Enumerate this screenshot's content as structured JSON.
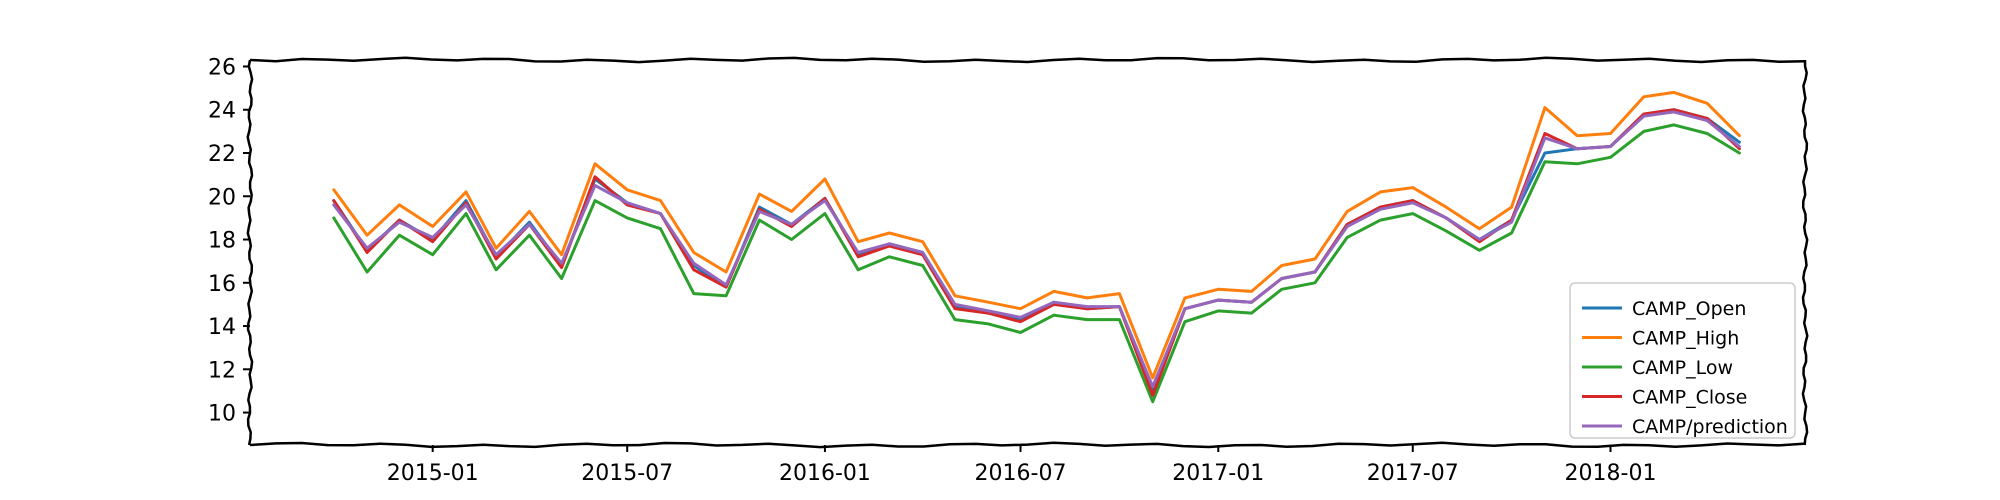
{
  "chart_data": {
    "type": "line",
    "title": "",
    "xlabel": "",
    "ylabel": "",
    "x_tick_labels": [
      "2015-01",
      "2015-07",
      "2016-01",
      "2016-07",
      "2017-01",
      "2017-07",
      "2018-01"
    ],
    "y_ticks": [
      10,
      12,
      14,
      16,
      18,
      20,
      22,
      24,
      26
    ],
    "ylim": [
      8.5,
      26.3
    ],
    "xlim": [
      "2014-07-15",
      "2018-07-01"
    ],
    "legend_position": "lower right",
    "grid": false,
    "colors": {
      "CAMP_Open": "#1f77b4",
      "CAMP_High": "#ff7f0e",
      "CAMP_Low": "#2ca02c",
      "CAMP_Close": "#d62728",
      "CAMP/prediction": "#9467bd"
    },
    "x": [
      "2014-10-01",
      "2014-11-01",
      "2014-12-01",
      "2015-01-01",
      "2015-02-01",
      "2015-03-01",
      "2015-04-01",
      "2015-05-01",
      "2015-06-01",
      "2015-07-01",
      "2015-08-01",
      "2015-09-01",
      "2015-10-01",
      "2015-11-01",
      "2015-12-01",
      "2016-01-01",
      "2016-02-01",
      "2016-03-01",
      "2016-04-01",
      "2016-05-01",
      "2016-06-01",
      "2016-07-01",
      "2016-08-01",
      "2016-09-01",
      "2016-10-01",
      "2016-11-01",
      "2016-12-01",
      "2017-01-01",
      "2017-02-01",
      "2017-03-01",
      "2017-04-01",
      "2017-05-01",
      "2017-06-01",
      "2017-07-01",
      "2017-08-01",
      "2017-09-01",
      "2017-10-01",
      "2017-11-01",
      "2017-12-01",
      "2018-01-01",
      "2018-02-01",
      "2018-03-01",
      "2018-04-01",
      "2018-05-01"
    ],
    "series": [
      {
        "name": "CAMP_Open",
        "values": [
          19.8,
          17.5,
          18.9,
          18.0,
          19.8,
          17.2,
          18.8,
          16.8,
          20.8,
          19.7,
          19.2,
          16.8,
          15.8,
          19.5,
          18.7,
          19.9,
          17.3,
          17.8,
          17.4,
          14.9,
          14.6,
          14.3,
          15.1,
          14.8,
          14.9,
          11.0,
          14.8,
          15.2,
          15.1,
          16.2,
          16.5,
          18.7,
          19.5,
          19.8,
          19.0,
          18.0,
          18.9,
          22.0,
          22.2,
          22.3,
          23.8,
          24.0,
          23.6,
          22.5
        ]
      },
      {
        "name": "CAMP_High",
        "values": [
          20.3,
          18.2,
          19.6,
          18.6,
          20.2,
          17.6,
          19.3,
          17.3,
          21.5,
          20.3,
          19.8,
          17.4,
          16.5,
          20.1,
          19.3,
          20.8,
          17.9,
          18.3,
          17.9,
          15.4,
          15.1,
          14.8,
          15.6,
          15.3,
          15.5,
          11.6,
          15.3,
          15.7,
          15.6,
          16.8,
          17.1,
          19.3,
          20.2,
          20.4,
          19.5,
          18.5,
          19.5,
          24.1,
          22.8,
          22.9,
          24.6,
          24.8,
          24.3,
          22.8
        ]
      },
      {
        "name": "CAMP_Low",
        "values": [
          19.0,
          16.5,
          18.2,
          17.3,
          19.2,
          16.6,
          18.2,
          16.2,
          19.8,
          19.0,
          18.5,
          15.5,
          15.4,
          18.9,
          18.0,
          19.2,
          16.6,
          17.2,
          16.8,
          14.3,
          14.1,
          13.7,
          14.5,
          14.3,
          14.3,
          10.5,
          14.2,
          14.7,
          14.6,
          15.7,
          16.0,
          18.1,
          18.9,
          19.2,
          18.4,
          17.5,
          18.3,
          21.6,
          21.5,
          21.8,
          23.0,
          23.3,
          22.9,
          22.0
        ]
      },
      {
        "name": "CAMP_Close",
        "values": [
          19.8,
          17.4,
          18.9,
          17.9,
          19.7,
          17.1,
          18.7,
          16.7,
          20.9,
          19.6,
          19.2,
          16.6,
          15.8,
          19.4,
          18.6,
          19.9,
          17.2,
          17.7,
          17.3,
          14.8,
          14.6,
          14.2,
          15.0,
          14.8,
          14.9,
          10.8,
          14.8,
          15.2,
          15.1,
          16.2,
          16.5,
          18.7,
          19.5,
          19.8,
          19.0,
          17.9,
          18.9,
          22.9,
          22.2,
          22.3,
          23.8,
          24.0,
          23.6,
          22.2
        ]
      },
      {
        "name": "CAMP/prediction",
        "values": [
          19.6,
          17.6,
          18.8,
          18.1,
          19.6,
          17.3,
          18.7,
          16.9,
          20.5,
          19.7,
          19.2,
          16.9,
          15.9,
          19.3,
          18.7,
          19.8,
          17.4,
          17.8,
          17.4,
          15.0,
          14.7,
          14.4,
          15.1,
          14.9,
          14.9,
          11.2,
          14.8,
          15.2,
          15.1,
          16.2,
          16.5,
          18.6,
          19.4,
          19.7,
          19.0,
          18.0,
          18.8,
          22.7,
          22.2,
          22.3,
          23.7,
          23.9,
          23.5,
          22.3
        ]
      }
    ]
  }
}
